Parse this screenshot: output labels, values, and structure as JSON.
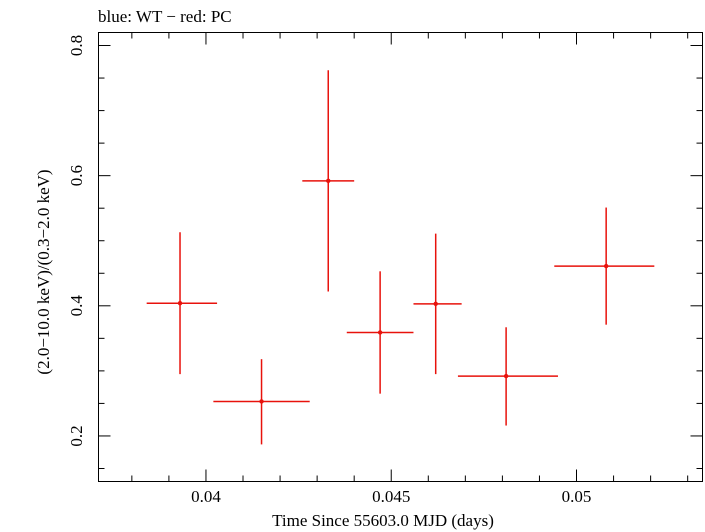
{
  "chart_data": {
    "type": "scatter",
    "title": "blue: WT − red: PC",
    "xlabel": "Time Since 55603.0 MJD (days)",
    "ylabel": "(2.0−10.0 keV)/(0.3−2.0 keV)",
    "xlim": [
      0.0371,
      0.0534
    ],
    "ylim": [
      0.13,
      0.82
    ],
    "x_ticks": [
      0.04,
      0.045,
      0.05
    ],
    "x_tick_labels": [
      "0.04",
      "0.045",
      "0.05"
    ],
    "y_ticks": [
      0.2,
      0.4,
      0.6,
      0.8
    ],
    "y_tick_labels": [
      "0.2",
      "0.4",
      "0.6",
      "0.8"
    ],
    "grid": false,
    "series": [
      {
        "color": "#e8120c",
        "points": [
          {
            "x": 0.0393,
            "y": 0.404,
            "xlo": 0.0384,
            "xhi": 0.0403,
            "ylo": 0.295,
            "yhi": 0.513
          },
          {
            "x": 0.0415,
            "y": 0.253,
            "xlo": 0.0402,
            "xhi": 0.0428,
            "ylo": 0.187,
            "yhi": 0.318
          },
          {
            "x": 0.0433,
            "y": 0.592,
            "xlo": 0.0426,
            "xhi": 0.044,
            "ylo": 0.422,
            "yhi": 0.762
          },
          {
            "x": 0.0447,
            "y": 0.359,
            "xlo": 0.0438,
            "xhi": 0.0456,
            "ylo": 0.265,
            "yhi": 0.453
          },
          {
            "x": 0.0462,
            "y": 0.403,
            "xlo": 0.0456,
            "xhi": 0.0469,
            "ylo": 0.295,
            "yhi": 0.511
          },
          {
            "x": 0.0481,
            "y": 0.292,
            "xlo": 0.0468,
            "xhi": 0.0495,
            "ylo": 0.216,
            "yhi": 0.367
          },
          {
            "x": 0.0508,
            "y": 0.461,
            "xlo": 0.0494,
            "xhi": 0.0521,
            "ylo": 0.371,
            "yhi": 0.551
          }
        ]
      }
    ]
  }
}
